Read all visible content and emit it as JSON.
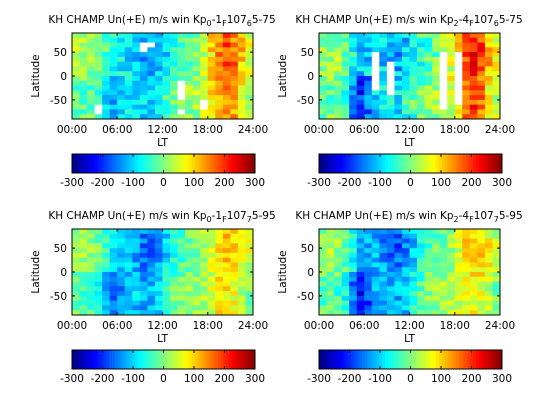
{
  "chart_data": [
    {
      "type": "heatmap",
      "title": "KH CHAMP Un(+E) m/s win Kp0-1F107 65-75",
      "title_parts": {
        "prefix": "KH CHAMP Un(+E) m/s win Kp",
        "kp_lo": "0",
        "kp_hi": "1",
        "f": "F",
        "f_num": "107",
        "f_sub": "6",
        "range": "5-75"
      },
      "xlabel": "LT",
      "ylabel": "Latitude",
      "xticks": [
        "00:00",
        "06:00",
        "12:00",
        "18:00",
        "24:00"
      ],
      "yticks": [
        "50",
        "0",
        "-50"
      ],
      "xlim": [
        0,
        24
      ],
      "ylim": [
        -90,
        90
      ],
      "colorbar": {
        "range": [
          -300,
          300
        ],
        "ticks": [
          "-300",
          "-200",
          "-100",
          "0",
          "100",
          "200",
          "300"
        ]
      },
      "pattern": {
        "w_day": -120,
        "w_morning": -80,
        "w_eve": 160,
        "w_noise": 45,
        "seed": 1
      },
      "gaps": [
        [
          3,
          16
        ],
        [
          3,
          15
        ],
        [
          9,
          3
        ],
        [
          9,
          2
        ],
        [
          14,
          16
        ],
        [
          14,
          13
        ],
        [
          14,
          12
        ],
        [
          14,
          11
        ],
        [
          14,
          10
        ],
        [
          17,
          15
        ],
        [
          17,
          14
        ],
        [
          10,
          2
        ]
      ]
    },
    {
      "type": "heatmap",
      "title": "KH CHAMP Un(+E) m/s win Kp2-4F107 65-75",
      "title_parts": {
        "prefix": "KH CHAMP Un(+E) m/s win Kp",
        "kp_lo": "2",
        "kp_hi": "4",
        "f": "F",
        "f_num": "107",
        "f_sub": "6",
        "range": "5-75"
      },
      "xlabel": "LT",
      "ylabel": "Latitude",
      "xticks": [
        "00:00",
        "06:00",
        "12:00",
        "18:00",
        "24:00"
      ],
      "yticks": [
        "50",
        "0",
        "-50"
      ],
      "xlim": [
        0,
        24
      ],
      "ylim": [
        -90,
        90
      ],
      "colorbar": {
        "range": [
          -300,
          300
        ],
        "ticks": [
          "-300",
          "-200",
          "-100",
          "0",
          "100",
          "200",
          "300"
        ]
      },
      "pattern": {
        "w_day": -100,
        "w_morning": -150,
        "w_eve": 200,
        "w_noise": 55,
        "seed": 2
      },
      "gaps": [
        [
          7,
          11
        ],
        [
          7,
          10
        ],
        [
          7,
          9
        ],
        [
          7,
          8
        ],
        [
          7,
          7
        ],
        [
          7,
          6
        ],
        [
          7,
          5
        ],
        [
          7,
          4
        ],
        [
          9,
          12
        ],
        [
          9,
          11
        ],
        [
          9,
          10
        ],
        [
          9,
          9
        ],
        [
          9,
          8
        ],
        [
          9,
          7
        ],
        [
          9,
          6
        ],
        [
          16,
          15
        ],
        [
          16,
          14
        ],
        [
          16,
          13
        ],
        [
          16,
          12
        ],
        [
          16,
          11
        ],
        [
          16,
          10
        ],
        [
          16,
          9
        ],
        [
          16,
          8
        ],
        [
          16,
          7
        ],
        [
          16,
          6
        ],
        [
          16,
          5
        ],
        [
          16,
          4
        ],
        [
          18,
          14
        ],
        [
          18,
          13
        ],
        [
          18,
          12
        ],
        [
          18,
          11
        ],
        [
          18,
          10
        ],
        [
          18,
          9
        ],
        [
          18,
          8
        ],
        [
          18,
          7
        ],
        [
          18,
          6
        ],
        [
          18,
          5
        ],
        [
          18,
          4
        ]
      ]
    },
    {
      "type": "heatmap",
      "title": "KH CHAMP Un(+E) m/s win Kp0-1F107 75-95",
      "title_parts": {
        "prefix": "KH CHAMP Un(+E) m/s win Kp",
        "kp_lo": "0",
        "kp_hi": "1",
        "f": "F",
        "f_num": "107",
        "f_sub": "7",
        "range": "5-95"
      },
      "xlabel": "LT",
      "ylabel": "Latitude",
      "xticks": [
        "00:00",
        "06:00",
        "12:00",
        "18:00",
        "24:00"
      ],
      "yticks": [
        "50",
        "0",
        "-50"
      ],
      "xlim": [
        0,
        24
      ],
      "ylim": [
        -90,
        90
      ],
      "colorbar": {
        "range": [
          -300,
          300
        ],
        "ticks": [
          "-300",
          "-200",
          "-100",
          "0",
          "100",
          "200",
          "300"
        ]
      },
      "pattern": {
        "w_day": -140,
        "w_morning": -120,
        "w_eve": 100,
        "w_noise": 40,
        "seed": 3
      },
      "gaps": []
    },
    {
      "type": "heatmap",
      "title": "KH CHAMP Un(+E) m/s win Kp2-4F107 75-95",
      "title_parts": {
        "prefix": "KH CHAMP Un(+E) m/s win Kp",
        "kp_lo": "2",
        "kp_hi": "4",
        "f": "F",
        "f_num": "107",
        "f_sub": "7",
        "range": "5-95"
      },
      "xlabel": "LT",
      "ylabel": "Latitude",
      "xticks": [
        "00:00",
        "06:00",
        "12:00",
        "18:00",
        "24:00"
      ],
      "yticks": [
        "50",
        "0",
        "-50"
      ],
      "xlim": [
        0,
        24
      ],
      "ylim": [
        -90,
        90
      ],
      "colorbar": {
        "range": [
          -300,
          300
        ],
        "ticks": [
          "-300",
          "-200",
          "-100",
          "0",
          "100",
          "200",
          "300"
        ]
      },
      "pattern": {
        "w_day": -150,
        "w_morning": -160,
        "w_eve": 90,
        "w_noise": 45,
        "seed": 4
      },
      "gaps": []
    }
  ]
}
